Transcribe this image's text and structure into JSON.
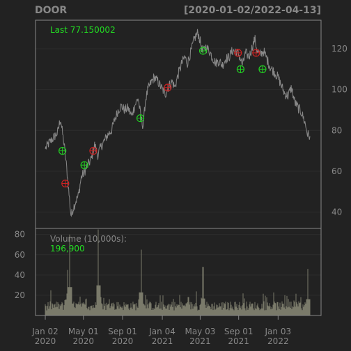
{
  "chart_data": {
    "type": "line",
    "symbol": "DOOR",
    "date_range": "[2020-01-02/2022-04-13]",
    "last_label": "Last 77.150002",
    "volume_label": "Volume (10,000s):",
    "volume_last": "196,900",
    "x_ticks": [
      {
        "date": "2020-01-02",
        "line1": "Jan 02",
        "line2": "2020"
      },
      {
        "date": "2020-05-01",
        "line1": "May 01",
        "line2": "2020"
      },
      {
        "date": "2020-09-01",
        "line1": "Sep 01",
        "line2": "2020"
      },
      {
        "date": "2021-01-04",
        "line1": "Jan 04",
        "line2": "2021"
      },
      {
        "date": "2021-05-03",
        "line1": "May 03",
        "line2": "2021"
      },
      {
        "date": "2021-09-01",
        "line1": "Sep 01",
        "line2": "2021"
      },
      {
        "date": "2022-01-03",
        "line1": "Jan 03",
        "line2": "2022"
      }
    ],
    "price": {
      "ylim": [
        32,
        134
      ],
      "ticks": [
        40,
        60,
        80,
        100,
        120
      ],
      "series": [
        [
          "2020-01-02",
          71
        ],
        [
          "2020-01-10",
          73
        ],
        [
          "2020-01-20",
          75
        ],
        [
          "2020-01-31",
          77
        ],
        [
          "2020-02-10",
          79
        ],
        [
          "2020-02-19",
          86
        ],
        [
          "2020-02-24",
          80
        ],
        [
          "2020-03-02",
          72
        ],
        [
          "2020-03-09",
          62
        ],
        [
          "2020-03-16",
          50
        ],
        [
          "2020-03-23",
          38
        ],
        [
          "2020-03-30",
          42
        ],
        [
          "2020-04-06",
          45
        ],
        [
          "2020-04-15",
          48
        ],
        [
          "2020-04-24",
          57
        ],
        [
          "2020-05-05",
          60
        ],
        [
          "2020-05-15",
          63
        ],
        [
          "2020-05-26",
          66
        ],
        [
          "2020-06-05",
          73
        ],
        [
          "2020-06-15",
          68
        ],
        [
          "2020-06-25",
          72
        ],
        [
          "2020-07-06",
          75
        ],
        [
          "2020-07-17",
          78
        ],
        [
          "2020-07-28",
          80
        ],
        [
          "2020-08-07",
          85
        ],
        [
          "2020-08-18",
          90
        ],
        [
          "2020-08-28",
          92
        ],
        [
          "2020-09-08",
          90
        ],
        [
          "2020-09-18",
          91
        ],
        [
          "2020-09-29",
          87
        ],
        [
          "2020-10-09",
          92
        ],
        [
          "2020-10-20",
          96
        ],
        [
          "2020-10-29",
          86
        ],
        [
          "2020-11-05",
          82
        ],
        [
          "2020-11-12",
          95
        ],
        [
          "2020-11-20",
          100
        ],
        [
          "2020-12-01",
          104
        ],
        [
          "2020-12-10",
          106
        ],
        [
          "2020-12-21",
          104
        ],
        [
          "2021-01-04",
          100
        ],
        [
          "2021-01-14",
          98
        ],
        [
          "2021-01-25",
          102
        ],
        [
          "2021-02-04",
          104
        ],
        [
          "2021-02-12",
          101
        ],
        [
          "2021-02-22",
          107
        ],
        [
          "2021-03-04",
          112
        ],
        [
          "2021-03-15",
          116
        ],
        [
          "2021-03-24",
          113
        ],
        [
          "2021-04-05",
          119
        ],
        [
          "2021-04-15",
          125
        ],
        [
          "2021-04-26",
          128
        ],
        [
          "2021-05-04",
          123
        ],
        [
          "2021-05-11",
          118
        ],
        [
          "2021-05-20",
          121
        ],
        [
          "2021-06-01",
          119
        ],
        [
          "2021-06-10",
          116
        ],
        [
          "2021-06-21",
          113
        ],
        [
          "2021-07-01",
          114
        ],
        [
          "2021-07-12",
          112
        ],
        [
          "2021-07-22",
          115
        ],
        [
          "2021-08-02",
          116
        ],
        [
          "2021-08-12",
          119
        ],
        [
          "2021-08-23",
          119
        ],
        [
          "2021-09-02",
          117
        ],
        [
          "2021-09-13",
          112
        ],
        [
          "2021-09-23",
          118
        ],
        [
          "2021-10-04",
          116
        ],
        [
          "2021-10-14",
          121
        ],
        [
          "2021-10-22",
          125
        ],
        [
          "2021-10-29",
          119
        ],
        [
          "2021-11-08",
          117
        ],
        [
          "2021-11-18",
          119
        ],
        [
          "2021-11-29",
          115
        ],
        [
          "2021-12-09",
          111
        ],
        [
          "2021-12-20",
          109
        ],
        [
          "2022-01-03",
          106
        ],
        [
          "2022-01-13",
          102
        ],
        [
          "2022-01-24",
          98
        ],
        [
          "2022-02-03",
          97
        ],
        [
          "2022-02-14",
          101
        ],
        [
          "2022-02-24",
          94
        ],
        [
          "2022-03-07",
          91
        ],
        [
          "2022-03-17",
          89
        ],
        [
          "2022-03-28",
          84
        ],
        [
          "2022-04-06",
          78
        ],
        [
          "2022-04-13",
          77.15
        ]
      ]
    },
    "signals": [
      {
        "date": "2020-02-25",
        "price": 70,
        "type": "buy"
      },
      {
        "date": "2020-03-05",
        "price": 54,
        "type": "sell"
      },
      {
        "date": "2020-05-04",
        "price": 63,
        "type": "buy"
      },
      {
        "date": "2020-06-01",
        "price": 70,
        "type": "sell"
      },
      {
        "date": "2020-10-27",
        "price": 86,
        "type": "buy"
      },
      {
        "date": "2021-01-21",
        "price": 101,
        "type": "sell"
      },
      {
        "date": "2021-05-12",
        "price": 119,
        "type": "buy"
      },
      {
        "date": "2021-08-30",
        "price": 118,
        "type": "sell"
      },
      {
        "date": "2021-09-07",
        "price": 110,
        "type": "buy"
      },
      {
        "date": "2021-10-26",
        "price": 118,
        "type": "sell"
      },
      {
        "date": "2021-11-15",
        "price": 110,
        "type": "buy"
      }
    ],
    "volume": {
      "ylim": [
        0,
        86
      ],
      "ticks": [
        20,
        40,
        60,
        80
      ],
      "spikes": [
        [
          "2020-03-19",
          80
        ],
        [
          "2020-06-17",
          85
        ],
        [
          "2020-10-30",
          65
        ],
        [
          "2020-03-12",
          45
        ],
        [
          "2021-05-12",
          48
        ],
        [
          "2022-04-07",
          46
        ]
      ]
    },
    "colors": {
      "background": "#222222",
      "frame": "#888888",
      "grid": "#2c2c2c",
      "text": "#888888",
      "price_line": "#888888",
      "volume_bars": "#7a7a6a",
      "highlight": "#22dd22",
      "buy": "#22cc22",
      "sell": "#cc2222"
    }
  }
}
